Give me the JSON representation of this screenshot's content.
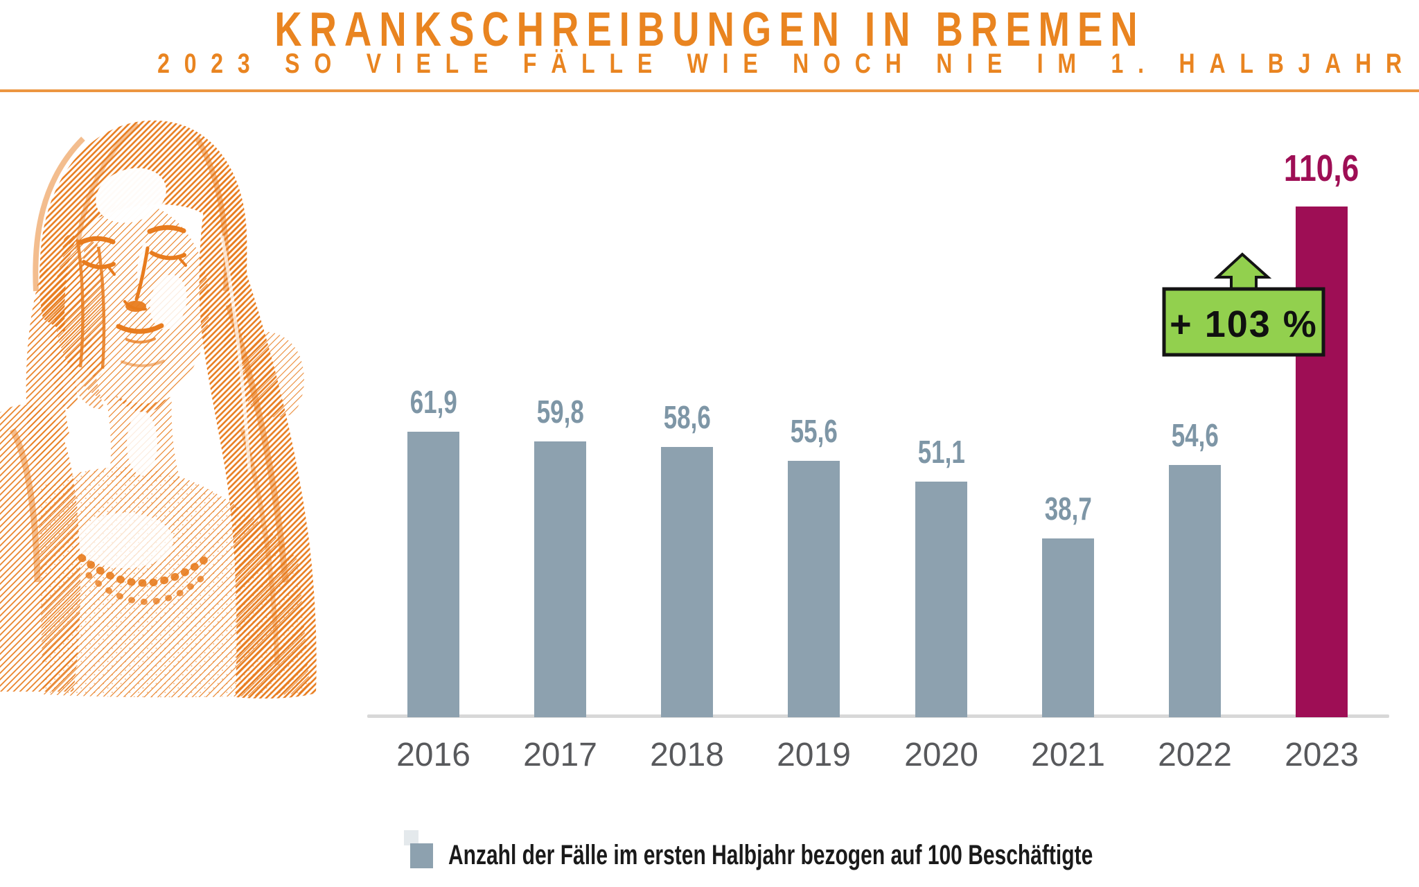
{
  "header": {
    "title": "KRANKSCHREIBUNGEN IN BREMEN",
    "subtitle": "2023 SO VIELE FÄLLE WIE NOCH NIE IM 1. HALBJAHR"
  },
  "hero": {
    "description": "Halftone engraving-style illustration in orange of a woman with closed eyes holding her temples (headache)",
    "color": "#E87C1E"
  },
  "chart_data": {
    "type": "bar",
    "categories": [
      "2016",
      "2017",
      "2018",
      "2019",
      "2020",
      "2021",
      "2022",
      "2023"
    ],
    "values": [
      61.9,
      59.8,
      58.6,
      55.6,
      51.1,
      38.7,
      54.6,
      110.6
    ],
    "value_labels": [
      "61,9",
      "59,8",
      "58,6",
      "55,6",
      "51,1",
      "38,7",
      "54,6",
      "110,6"
    ],
    "highlight_index": 7,
    "title": "Krankschreibungen in Bremen",
    "xlabel": "",
    "ylabel": "Anzahl der Fälle im ersten Halbjahr bezogen auf 100 Beschäftigte",
    "ylim": [
      0,
      120
    ],
    "grid": false,
    "legend_position": "bottom",
    "legend_label": "Anzahl der Fälle im ersten Halbjahr bezogen auf 100 Beschäftigte",
    "annotation": {
      "label": "+ 103 %",
      "applies_to": "2023"
    },
    "colors": {
      "bar": "#8DA1AF",
      "highlight": "#9E0E55",
      "value_label": "#7E96A6",
      "year_label": "#58595C",
      "annotation_bg": "#92D04E",
      "annotation_border": "#141414",
      "annotation_text": "#101010",
      "axis": "#D8D8D8",
      "accent_orange": "#E98420",
      "legend_ghost": "#C9D4DA"
    }
  }
}
